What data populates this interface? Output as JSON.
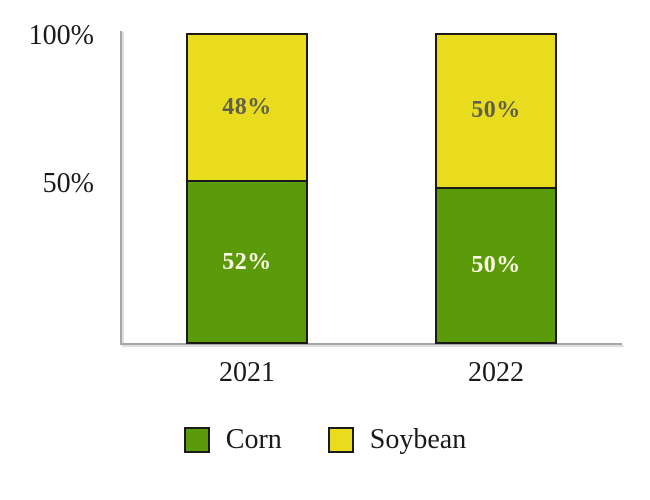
{
  "chart_data": {
    "type": "bar",
    "stacked": true,
    "title": "",
    "categories": [
      "2021",
      "2022"
    ],
    "series": [
      {
        "name": "Corn",
        "color": "#5B9B0A",
        "label_color": "#FBF9E6",
        "values": [
          52,
          50
        ]
      },
      {
        "name": "Soybean",
        "color": "#E9DC1E",
        "label_color": "#5F5F4A",
        "values": [
          48,
          50
        ]
      }
    ],
    "value_suffix": "%",
    "ylim": [
      0,
      100
    ],
    "yticks": [
      {
        "value": 100,
        "label": "100%"
      },
      {
        "value": 50,
        "label": "50%"
      }
    ],
    "grid": false,
    "legend_position": "bottom"
  },
  "colors": {
    "axis": "#A6A6A6",
    "bar_border": "#1A1A1A",
    "text": "#1A1A1A",
    "background": "#FFFFFF"
  }
}
